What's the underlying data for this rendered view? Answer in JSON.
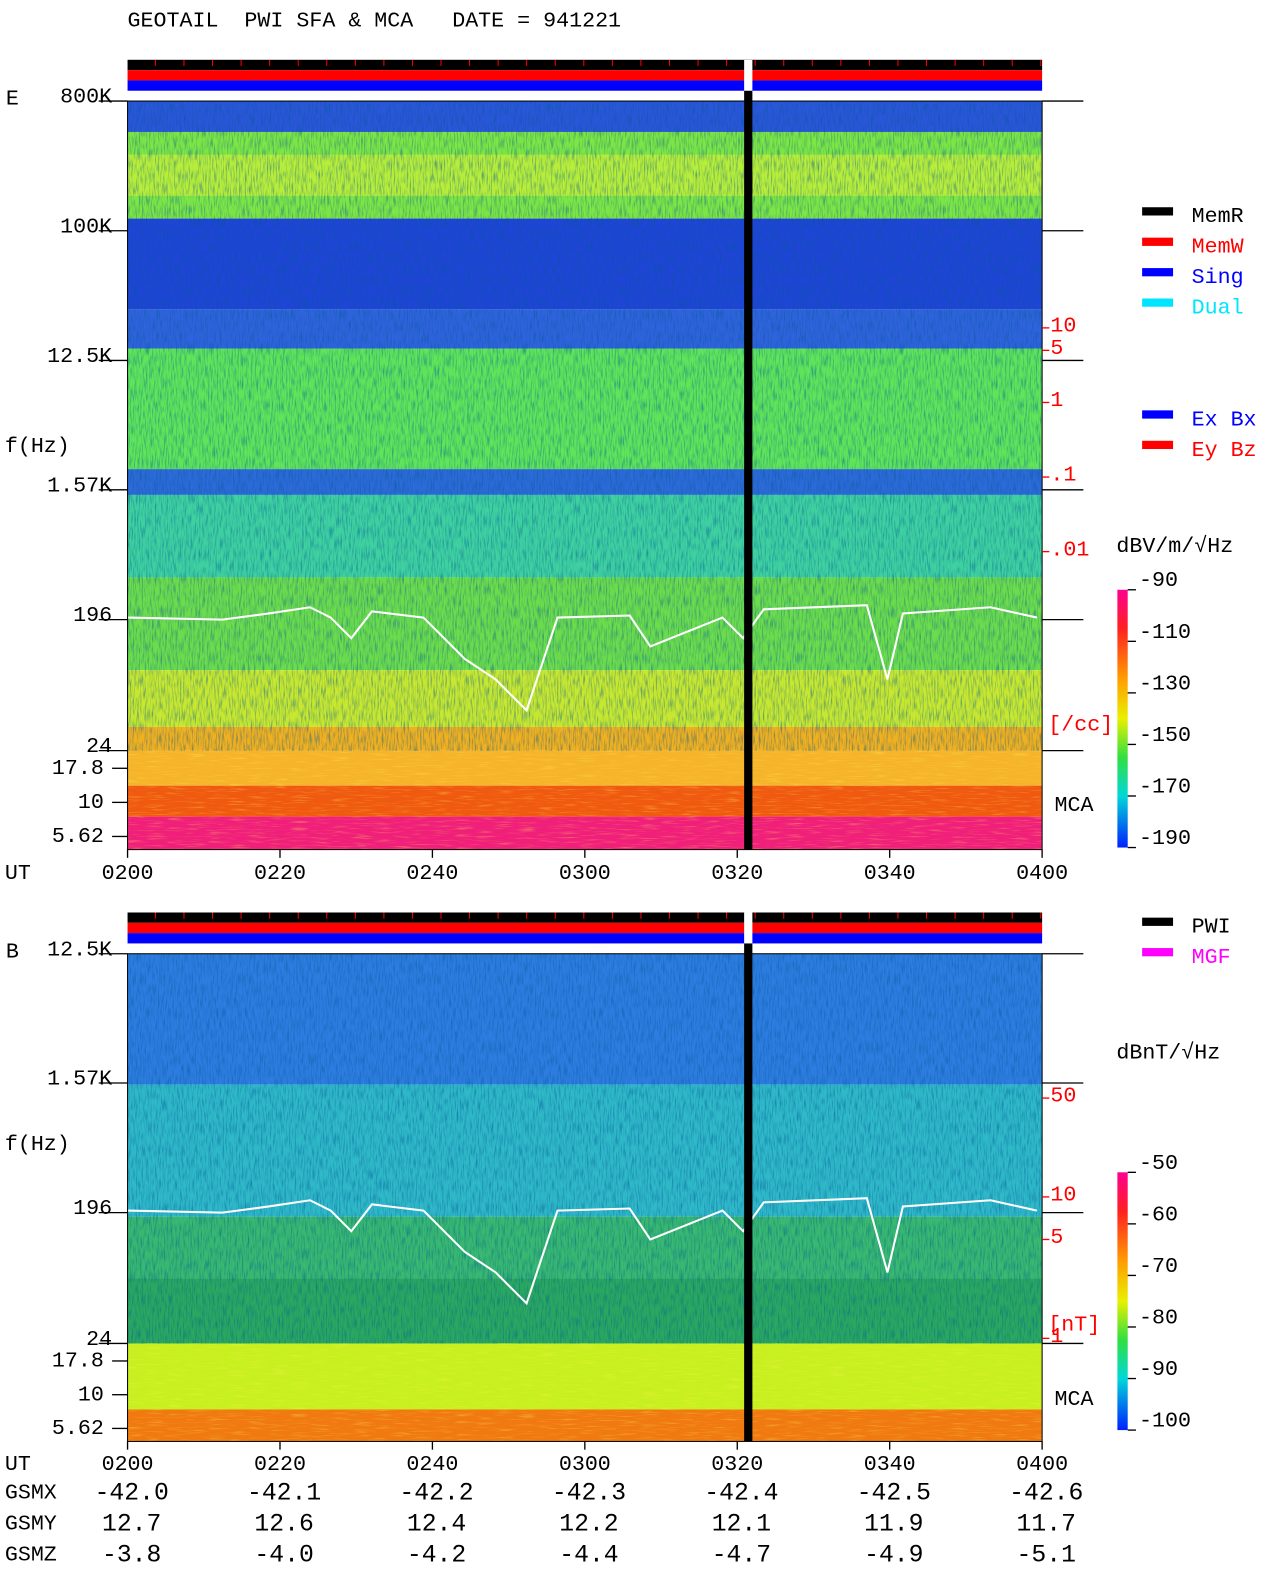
{
  "chart_data": [
    {
      "type": "spectrogram",
      "title": "GEOTAIL  PWI SFA & MCA   DATE = 941221",
      "panel_label": "E",
      "ylabel": "f(Hz)",
      "xlabel": "UT",
      "log_y": true,
      "ylim": [
        24,
        800000
      ],
      "yticks": [
        {
          "value": 800000,
          "label": "800K"
        },
        {
          "value": 100000,
          "label": "100K"
        },
        {
          "value": 12500,
          "label": "12.5K"
        },
        {
          "value": 1570,
          "label": "1.57K"
        },
        196,
        24
      ],
      "mca_label": "MCA",
      "mca_ylim": [
        4.5,
        24
      ],
      "mca_yticks": [
        17.8,
        10,
        5.62
      ],
      "y2label": "[/cc]",
      "y2lim": [
        0.01,
        10
      ],
      "y2ticks": [
        10,
        5,
        1,
        {
          "value": 0.1,
          "label": ".1"
        },
        {
          "value": 0.01,
          "label": ".01"
        }
      ],
      "xticks": [
        "0200",
        "0220",
        "0240",
        "0300",
        "0320",
        "0340",
        "0400"
      ],
      "colorbar": {
        "label": "dBV/m/√Hz",
        "lim": [
          -190,
          -90
        ],
        "ticks": [
          -90,
          -110,
          -130,
          -150,
          -170,
          -190
        ]
      },
      "legend": [
        {
          "name": "MemR",
          "color": "#000000"
        },
        {
          "name": "MemW",
          "color": "#ff0000"
        },
        {
          "name": "Sing",
          "color": "#0000ff"
        },
        {
          "name": "Dual",
          "color": "#00e5ff"
        }
      ],
      "legend2": [
        {
          "name": "Ex Bx",
          "color": "#0000ff"
        },
        {
          "name": "Ey Bz",
          "color": "#ff0000"
        }
      ]
    },
    {
      "type": "spectrogram",
      "panel_label": "B",
      "ylabel": "f(Hz)",
      "xlabel": "UT",
      "log_y": true,
      "ylim": [
        24,
        12500
      ],
      "yticks": [
        {
          "value": 12500,
          "label": "12.5K"
        },
        {
          "value": 1570,
          "label": "1.57K"
        },
        196,
        24
      ],
      "mca_label": "MCA",
      "mca_ylim": [
        4.5,
        24
      ],
      "mca_yticks": [
        17.8,
        10,
        5.62
      ],
      "y2label": "[nT]",
      "y2lim": [
        1,
        50
      ],
      "y2ticks": [
        50,
        10,
        5,
        1
      ],
      "xticks": [
        "0200",
        "0220",
        "0240",
        "0300",
        "0320",
        "0340",
        "0400"
      ],
      "colorbar": {
        "label": "dBnT/√Hz",
        "lim": [
          -100,
          -50
        ],
        "ticks": [
          -50,
          -60,
          -70,
          -80,
          -90,
          -100
        ]
      },
      "legend": [
        {
          "name": "PWI",
          "color": "#000000"
        },
        {
          "name": "MGF",
          "color": "#ff00ff"
        }
      ]
    }
  ],
  "orbit": {
    "rows": [
      {
        "label": "GSMX",
        "values": [
          "-42.0",
          "-42.1",
          "-42.2",
          "-42.3",
          "-42.4",
          "-42.5",
          "-42.6"
        ]
      },
      {
        "label": "GSMY",
        "values": [
          "12.7",
          "12.6",
          "12.4",
          "12.2",
          "12.1",
          "11.9",
          "11.7"
        ]
      },
      {
        "label": "GSMZ",
        "values": [
          "-3.8",
          "-4.0",
          "-4.2",
          "-4.4",
          "-4.7",
          "-4.9",
          "-5.1"
        ]
      }
    ]
  }
}
